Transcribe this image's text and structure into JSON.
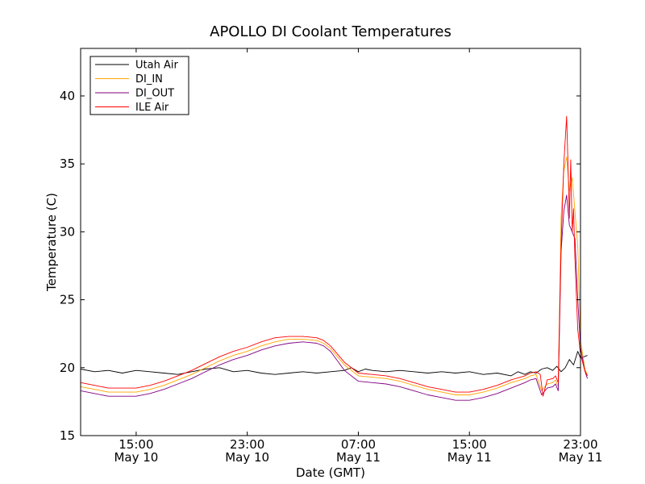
{
  "chart_data": {
    "type": "line",
    "title": "APOLLO DI Coolant Temperatures",
    "xlabel": "Date (GMT)",
    "ylabel": "Temperature (C)",
    "xlim": [
      11.0,
      47.0
    ],
    "ylim": [
      15,
      43.5
    ],
    "grid": false,
    "legend_position": "top-left",
    "x_unit": "hours since May 10 00:00 GMT",
    "x_ticks": [
      {
        "value": 15,
        "time": "15:00",
        "date": "May 10"
      },
      {
        "value": 23,
        "time": "23:00",
        "date": "May 10"
      },
      {
        "value": 31,
        "time": "07:00",
        "date": "May 11"
      },
      {
        "value": 39,
        "time": "15:00",
        "date": "May 11"
      },
      {
        "value": 47,
        "time": "23:00",
        "date": "May 11"
      }
    ],
    "y_ticks": [
      15,
      20,
      25,
      30,
      35,
      40
    ],
    "series": [
      {
        "name": "Utah Air",
        "color": "#000000",
        "x": [
          11.0,
          12.0,
          13.0,
          14.0,
          15.0,
          16.0,
          17.0,
          18.0,
          19.0,
          20.0,
          21.0,
          22.0,
          23.0,
          24.0,
          25.0,
          26.0,
          27.0,
          28.0,
          29.0,
          30.0,
          30.5,
          31.0,
          31.5,
          32.0,
          33.0,
          34.0,
          35.0,
          36.0,
          37.0,
          38.0,
          39.0,
          40.0,
          41.0,
          42.0,
          42.5,
          43.0,
          43.4,
          43.8,
          44.2,
          44.6,
          45.0,
          45.3,
          45.6,
          45.9,
          46.2,
          46.5,
          46.8,
          47.0,
          47.5
        ],
        "values": [
          19.9,
          19.7,
          19.8,
          19.6,
          19.8,
          19.7,
          19.6,
          19.5,
          19.7,
          19.9,
          20.0,
          19.7,
          19.8,
          19.6,
          19.5,
          19.6,
          19.7,
          19.6,
          19.7,
          19.8,
          20.0,
          19.7,
          19.9,
          19.8,
          19.7,
          19.8,
          19.7,
          19.6,
          19.7,
          19.6,
          19.7,
          19.5,
          19.6,
          19.4,
          19.7,
          19.5,
          19.7,
          19.6,
          19.9,
          20.0,
          19.8,
          20.1,
          19.7,
          20.0,
          20.6,
          20.2,
          21.2,
          20.7,
          20.9
        ]
      },
      {
        "name": "DI_IN",
        "color": "#ffa500",
        "x": [
          11.0,
          12.0,
          13.0,
          14.0,
          15.0,
          16.0,
          17.0,
          18.0,
          19.0,
          20.0,
          21.0,
          22.0,
          23.0,
          24.0,
          25.0,
          26.0,
          27.0,
          28.0,
          28.5,
          29.0,
          29.5,
          30.0,
          31.0,
          32.0,
          33.0,
          34.0,
          35.0,
          36.0,
          37.0,
          38.0,
          39.0,
          40.0,
          41.0,
          42.0,
          43.0,
          43.4,
          43.8,
          44.2,
          44.6,
          45.0,
          45.2,
          45.4,
          45.6,
          45.8,
          46.0,
          46.2,
          46.4,
          46.6,
          46.8,
          47.0,
          47.3,
          47.5
        ],
        "values": [
          18.6,
          18.4,
          18.2,
          18.2,
          18.2,
          18.4,
          18.7,
          19.1,
          19.5,
          20.0,
          20.5,
          20.9,
          21.2,
          21.6,
          21.9,
          22.1,
          22.1,
          22.0,
          21.8,
          21.4,
          20.8,
          20.2,
          19.4,
          19.3,
          19.2,
          19.0,
          18.7,
          18.4,
          18.2,
          18.0,
          18.0,
          18.2,
          18.5,
          18.9,
          19.2,
          19.4,
          19.5,
          18.3,
          18.8,
          18.9,
          19.1,
          18.6,
          31.0,
          34.5,
          35.5,
          33.0,
          34.0,
          31.5,
          29.0,
          22.0,
          20.0,
          19.4
        ]
      },
      {
        "name": "DI_OUT",
        "color": "#800080",
        "x": [
          11.0,
          12.0,
          13.0,
          14.0,
          15.0,
          16.0,
          17.0,
          18.0,
          19.0,
          20.0,
          21.0,
          22.0,
          23.0,
          24.0,
          25.0,
          26.0,
          27.0,
          28.0,
          28.5,
          29.0,
          29.5,
          30.0,
          31.0,
          32.0,
          33.0,
          34.0,
          35.0,
          36.0,
          37.0,
          38.0,
          39.0,
          40.0,
          41.0,
          42.0,
          43.0,
          43.4,
          43.8,
          44.2,
          44.6,
          45.0,
          45.2,
          45.4,
          45.6,
          45.8,
          46.0,
          46.2,
          46.4,
          46.6,
          46.8,
          47.0,
          47.3,
          47.5
        ],
        "values": [
          18.3,
          18.1,
          17.9,
          17.9,
          17.9,
          18.1,
          18.4,
          18.8,
          19.2,
          19.7,
          20.2,
          20.6,
          20.9,
          21.3,
          21.6,
          21.8,
          21.9,
          21.8,
          21.6,
          21.2,
          20.5,
          19.8,
          19.0,
          18.9,
          18.8,
          18.6,
          18.3,
          18.0,
          17.8,
          17.6,
          17.6,
          17.8,
          18.1,
          18.5,
          18.9,
          19.1,
          19.2,
          18.0,
          18.5,
          18.6,
          18.8,
          18.3,
          28.5,
          31.5,
          32.7,
          30.5,
          30.0,
          29.5,
          25.0,
          21.5,
          19.8,
          19.2
        ]
      },
      {
        "name": "ILE Air",
        "color": "#ff0000",
        "x": [
          11.0,
          12.0,
          13.0,
          14.0,
          15.0,
          16.0,
          17.0,
          18.0,
          19.0,
          20.0,
          21.0,
          22.0,
          23.0,
          24.0,
          25.0,
          26.0,
          27.0,
          28.0,
          28.5,
          29.0,
          29.5,
          30.0,
          31.0,
          32.0,
          33.0,
          34.0,
          35.0,
          36.0,
          37.0,
          38.0,
          39.0,
          40.0,
          41.0,
          42.0,
          43.0,
          43.4,
          43.8,
          44.1,
          44.3,
          44.6,
          45.0,
          45.2,
          45.4,
          45.6,
          45.8,
          46.0,
          46.1,
          46.2,
          46.3,
          46.4,
          46.5,
          46.6,
          46.8,
          47.0,
          47.3,
          47.5
        ],
        "values": [
          18.9,
          18.7,
          18.5,
          18.5,
          18.5,
          18.7,
          19.0,
          19.4,
          19.8,
          20.3,
          20.8,
          21.2,
          21.5,
          21.9,
          22.2,
          22.3,
          22.3,
          22.2,
          22.0,
          21.6,
          21.0,
          20.4,
          19.6,
          19.5,
          19.4,
          19.2,
          18.9,
          18.6,
          18.4,
          18.2,
          18.2,
          18.4,
          18.7,
          19.1,
          19.4,
          19.6,
          19.7,
          19.5,
          17.9,
          19.1,
          19.2,
          19.4,
          18.9,
          29.0,
          35.0,
          38.5,
          35.0,
          31.0,
          35.3,
          30.0,
          31.7,
          28.0,
          22.8,
          21.0,
          19.8,
          19.4
        ]
      }
    ]
  }
}
